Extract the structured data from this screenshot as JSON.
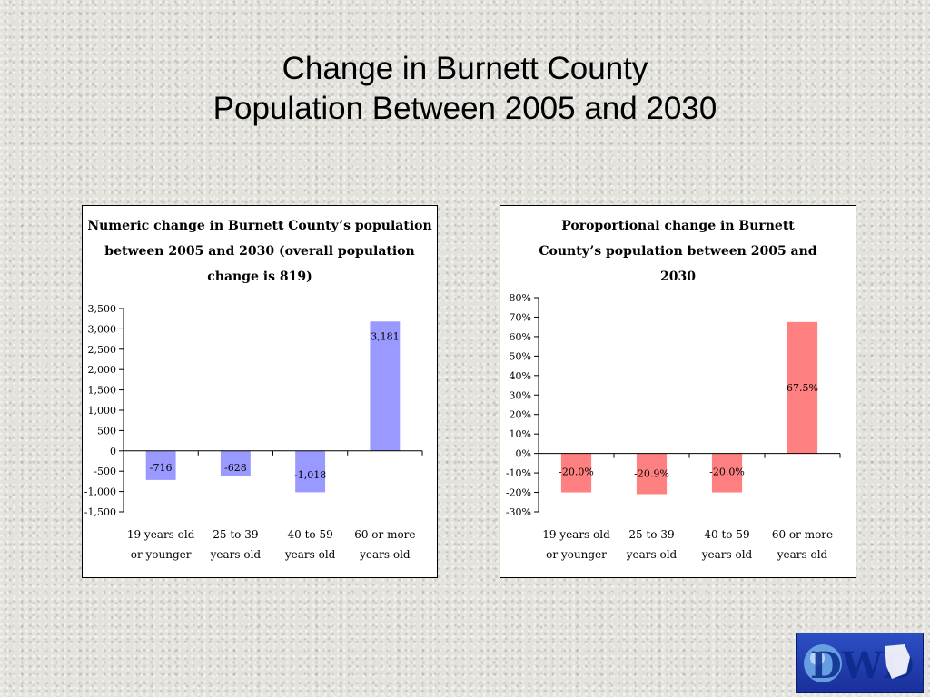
{
  "slide": {
    "title_line1": "Change in Burnett County",
    "title_line2": "Population Between 2005 and 2030"
  },
  "chart_data": [
    {
      "type": "bar",
      "title": "Numeric change in Burnett County’s population between 2005 and 2030 (overall population change is 819)",
      "categories": [
        [
          "19 years old",
          "or younger"
        ],
        [
          "25 to 39",
          "years old"
        ],
        [
          "40 to 59",
          "years old"
        ],
        [
          "60 or more",
          "years old"
        ]
      ],
      "values": [
        -716,
        -628,
        -1018,
        3181
      ],
      "data_labels": [
        "-716",
        "-628",
        "-1,018",
        "3,181"
      ],
      "ylim": [
        -1500,
        3500
      ],
      "yticks": [
        3500,
        3000,
        2500,
        2000,
        1500,
        1000,
        500,
        0,
        -500,
        -1000,
        -1500
      ],
      "ytick_labels": [
        "3,500",
        "3,000",
        "2,500",
        "2,000",
        "1,500",
        "1,000",
        "500",
        "0",
        "-500",
        "-1,000",
        "-1,500"
      ],
      "color": "#9999ff",
      "grid": false,
      "legend": "none"
    },
    {
      "type": "bar",
      "title": "Poroportional change in Burnett County’s population between 2005 and 2030",
      "categories": [
        [
          "19 years old",
          "or younger"
        ],
        [
          "25 to 39",
          "years old"
        ],
        [
          "40 to 59",
          "years old"
        ],
        [
          "60 or more",
          "years old"
        ]
      ],
      "values": [
        -20.0,
        -20.9,
        -20.0,
        67.5
      ],
      "data_labels": [
        "-20.0%",
        "-20.9%",
        "-20.0%",
        "67.5%"
      ],
      "ylim": [
        -30,
        80
      ],
      "yticks": [
        80,
        70,
        60,
        50,
        40,
        30,
        20,
        10,
        0,
        -10,
        -20,
        -30
      ],
      "ytick_labels": [
        "80%",
        "70%",
        "60%",
        "50%",
        "40%",
        "30%",
        "20%",
        "10%",
        "0%",
        "-10%",
        "-20%",
        "-30%"
      ],
      "color": "#ff8080",
      "grid": false,
      "legend": "none"
    }
  ],
  "logo": {
    "text": "DWD"
  }
}
